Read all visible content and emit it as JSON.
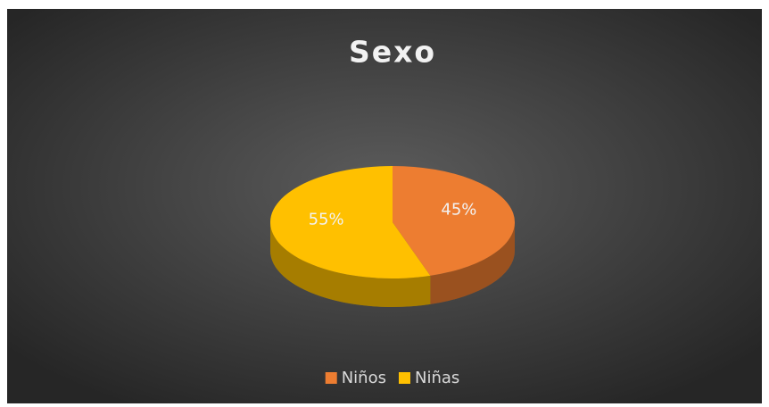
{
  "chart_data": {
    "type": "pie",
    "title": "Sexo",
    "categories": [
      "Niños",
      "Niñas"
    ],
    "values": [
      45,
      55
    ],
    "value_labels": [
      "45%",
      "55%"
    ],
    "colors": [
      "#ED7D31",
      "#FFC000"
    ],
    "legend": "bottom"
  }
}
